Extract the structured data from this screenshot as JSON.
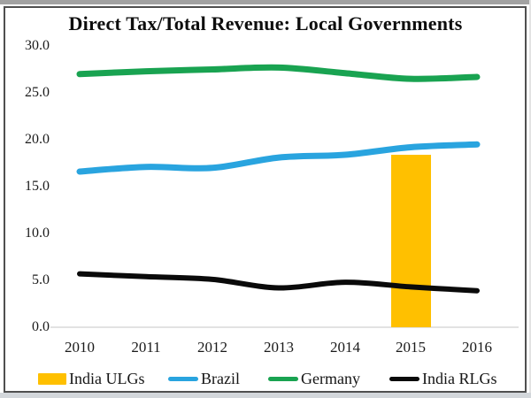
{
  "chart_data": {
    "type": "combo-bar-line",
    "title": "Direct Tax/Total Revenue: Local Governments",
    "categories": [
      "2010",
      "2011",
      "2012",
      "2013",
      "2014",
      "2015",
      "2016"
    ],
    "y_axis": {
      "ticks": [
        "30.0",
        "25.0",
        "20.0",
        "15.0",
        "10.0",
        "5.0",
        "0.0"
      ],
      "min": 0,
      "max": 30,
      "tick_step": 5
    },
    "grid": "zero-baseline-only",
    "legend_position": "bottom",
    "baseline_color": "#d9d9d9",
    "series": [
      {
        "name": "India ULGs",
        "type": "bar",
        "color": "#FFC000",
        "values": [
          null,
          null,
          null,
          null,
          null,
          18.4,
          null
        ]
      },
      {
        "name": "Brazil",
        "type": "line",
        "color": "#29A4DF",
        "values": [
          16.6,
          17.1,
          17.0,
          18.1,
          18.4,
          19.2,
          19.5
        ]
      },
      {
        "name": "Germany",
        "type": "line",
        "color": "#19A351",
        "values": [
          27.0,
          27.3,
          27.5,
          27.7,
          27.1,
          26.5,
          26.7
        ]
      },
      {
        "name": "India RLGs",
        "type": "line",
        "color": "#0A0A0A",
        "values": [
          5.7,
          5.4,
          5.1,
          4.2,
          4.8,
          4.3,
          3.9
        ]
      }
    ]
  }
}
